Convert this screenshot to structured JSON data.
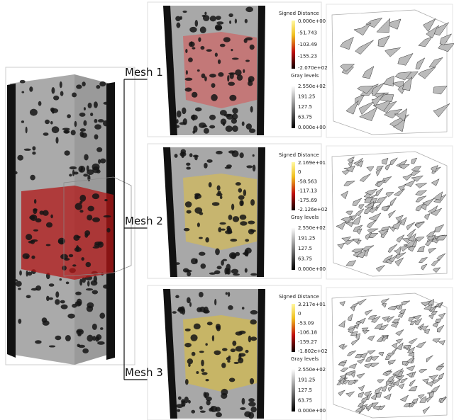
{
  "panels": [
    {
      "label": "Mesh 1",
      "signed_distance": {
        "title": "Signed Distance",
        "ticks": [
          "0.000e+00",
          "-51.743",
          "-103.49",
          "-155.23",
          "-2.070e+02"
        ]
      },
      "gray_levels": {
        "title": "Gray levels",
        "ticks": [
          "2.550e+02",
          "191.25",
          "127.5",
          "63.75",
          "0.000e+00"
        ]
      }
    },
    {
      "label": "Mesh 2",
      "signed_distance": {
        "title": "Signed Distance",
        "ticks": [
          "2.169e+01",
          "0",
          "-58.563",
          "-117.13",
          "-175.69",
          "-2.126e+02"
        ]
      },
      "gray_levels": {
        "title": "Gray levels",
        "ticks": [
          "2.550e+02",
          "191.25",
          "127.5",
          "63.75",
          "0.000e+00"
        ]
      }
    },
    {
      "label": "Mesh 3",
      "signed_distance": {
        "title": "Signed Distance",
        "ticks": [
          "3.217e+01",
          "0",
          "-53.09",
          "-106.18",
          "-159.27",
          "-1.802e+02"
        ]
      },
      "gray_levels": {
        "title": "Gray levels",
        "ticks": [
          "2.550e+02",
          "191.25",
          "127.5",
          "63.75",
          "0.000e+00"
        ]
      }
    }
  ]
}
